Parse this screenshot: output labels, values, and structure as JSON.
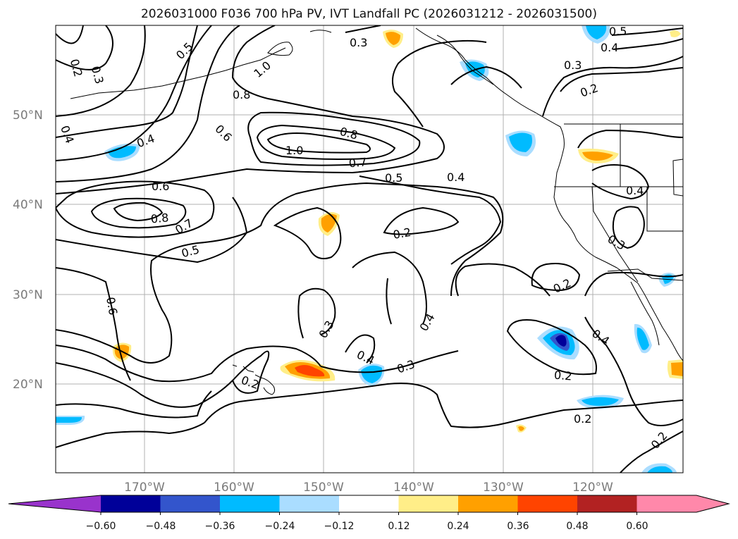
{
  "title": "2026031000 F036 700 hPa PV, IVT Landfall PC (2026031212 - 2026031500)",
  "lat_labels": [
    "50°N",
    "40°N",
    "30°N",
    "20°N"
  ],
  "lon_labels": [
    "170°W",
    "160°W",
    "150°W",
    "140°W",
    "130°W",
    "120°W"
  ],
  "colorbar": {
    "tick_labels": [
      "−0.60",
      "−0.48",
      "−0.36",
      "−0.24",
      "−0.12",
      "0.12",
      "0.24",
      "0.36",
      "0.48",
      "0.60"
    ],
    "colors": [
      "#9933cc",
      "#000099",
      "#3355cc",
      "#00bbff",
      "#aaddff",
      "#ffffff",
      "#ffee88",
      "#ffa000",
      "#ff4400",
      "#b22222",
      "#ff88aa",
      "#ff88aa"
    ]
  },
  "contour_labels": [
    {
      "text": "0.2"
    },
    {
      "text": "0.3"
    },
    {
      "text": "0.5"
    },
    {
      "text": "1.0"
    },
    {
      "text": "0.8"
    },
    {
      "text": "0.3"
    },
    {
      "text": "0.5"
    },
    {
      "text": "0.4"
    },
    {
      "text": "0.3"
    },
    {
      "text": "0.2"
    },
    {
      "text": "0.4"
    },
    {
      "text": "0.4"
    },
    {
      "text": "0.6"
    },
    {
      "text": "1.0"
    },
    {
      "text": "0.8"
    },
    {
      "text": "0.7"
    },
    {
      "text": "0.5"
    },
    {
      "text": "0.4"
    },
    {
      "text": "0.6"
    },
    {
      "text": "0.8"
    },
    {
      "text": "0.7"
    },
    {
      "text": "0.5"
    },
    {
      "text": "0.2"
    },
    {
      "text": "0.4"
    },
    {
      "text": "0.3"
    },
    {
      "text": "0.2"
    },
    {
      "text": "0.6"
    },
    {
      "text": "0.3"
    },
    {
      "text": "0.4"
    },
    {
      "text": "0.4"
    },
    {
      "text": "0.3"
    },
    {
      "text": "0.4"
    },
    {
      "text": "0.2"
    },
    {
      "text": "0.2"
    },
    {
      "text": "0.2"
    },
    {
      "text": "0.2"
    }
  ]
}
